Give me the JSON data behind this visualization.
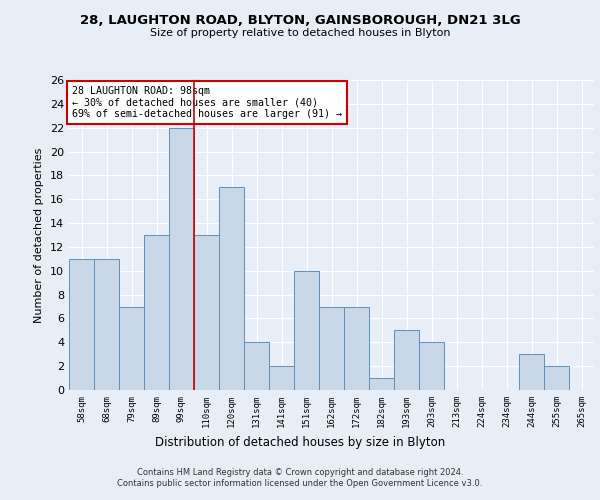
{
  "title1": "28, LAUGHTON ROAD, BLYTON, GAINSBOROUGH, DN21 3LG",
  "title2": "Size of property relative to detached houses in Blyton",
  "xlabel": "Distribution of detached houses by size in Blyton",
  "ylabel": "Number of detached properties",
  "bar_labels": [
    "58sqm",
    "68sqm",
    "79sqm",
    "89sqm",
    "99sqm",
    "110sqm",
    "120sqm",
    "131sqm",
    "141sqm",
    "151sqm",
    "162sqm",
    "172sqm",
    "182sqm",
    "193sqm",
    "203sqm",
    "213sqm",
    "224sqm",
    "234sqm",
    "244sqm",
    "255sqm",
    "265sqm"
  ],
  "bar_values": [
    11,
    11,
    7,
    13,
    22,
    13,
    17,
    4,
    2,
    10,
    7,
    7,
    1,
    5,
    4,
    0,
    0,
    0,
    3,
    2,
    0
  ],
  "bar_color": "#c8d8e8",
  "bar_edge_color": "#6090b8",
  "vline_index": 4,
  "vline_color": "#cc0000",
  "annotation_text": "28 LAUGHTON ROAD: 98sqm\n← 30% of detached houses are smaller (40)\n69% of semi-detached houses are larger (91) →",
  "annotation_box_color": "#ffffff",
  "annotation_box_edge": "#cc0000",
  "ylim": [
    0,
    26
  ],
  "yticks": [
    0,
    2,
    4,
    6,
    8,
    10,
    12,
    14,
    16,
    18,
    20,
    22,
    24,
    26
  ],
  "footer1": "Contains HM Land Registry data © Crown copyright and database right 2024.",
  "footer2": "Contains public sector information licensed under the Open Government Licence v3.0.",
  "background_color": "#e8eef8",
  "plot_bg_color": "#e8eef8"
}
